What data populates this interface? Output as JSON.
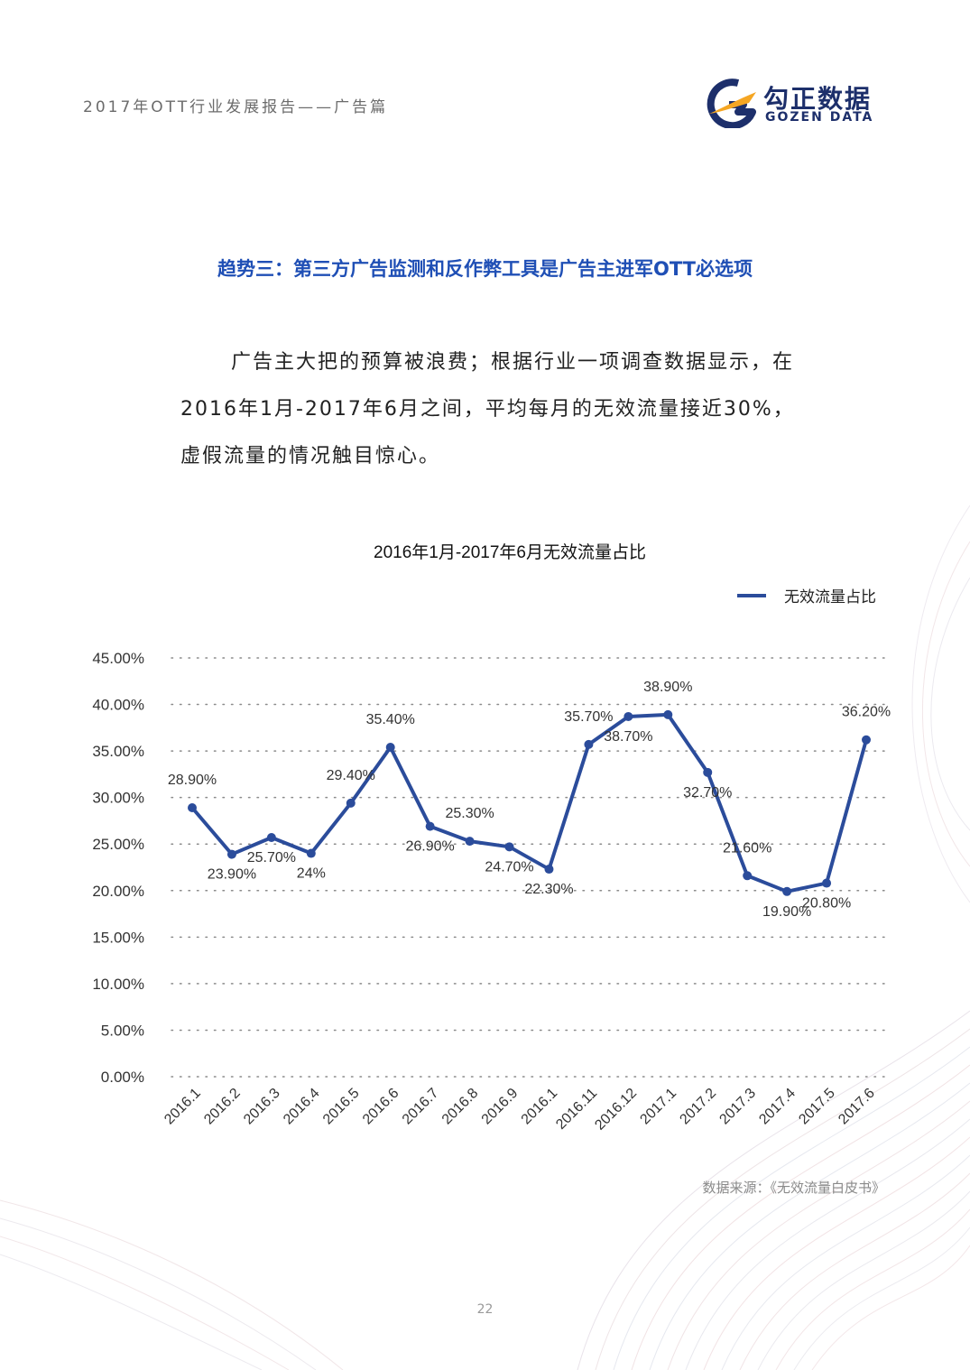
{
  "header": {
    "title": "2017年OTT行业发展报告——广告篇",
    "logo_cn": "勾正数据",
    "logo_en": "GOZEN DATA"
  },
  "section": {
    "heading": "趋势三：第三方广告监测和反作弊工具是广告主进军OTT必选项",
    "paragraph": "广告主大把的预算被浪费；根据行业一项调查数据显示，在2016年1月-2017年6月之间，平均每月的无效流量接近30%，虚假流量的情况触目惊心。"
  },
  "colors": {
    "accent": "#2b4c9b",
    "heading": "#1f4fb5",
    "brand_blue": "#1d2f6b",
    "brand_orange": "#f5a623"
  },
  "chart_data": {
    "type": "line",
    "title": "2016年1月-2017年6月无效流量占比",
    "legend_position": "top-right",
    "grid": true,
    "ylim": [
      0,
      45
    ],
    "yticks": [
      "0.00%",
      "5.00%",
      "10.00%",
      "15.00%",
      "20.00%",
      "25.00%",
      "30.00%",
      "35.00%",
      "40.00%",
      "45.00%"
    ],
    "categories": [
      "2016.1",
      "2016.2",
      "2016.3",
      "2016.4",
      "2016.5",
      "2016.6",
      "2016.7",
      "2016.8",
      "2016.9",
      "2016.1",
      "2016.11",
      "2016.12",
      "2017.1",
      "2017.2",
      "2017.3",
      "2017.4",
      "2017.5",
      "2017.6"
    ],
    "series": [
      {
        "name": "无效流量占比",
        "values": [
          28.9,
          23.9,
          25.7,
          24,
          29.4,
          35.4,
          26.9,
          25.3,
          24.7,
          22.3,
          35.7,
          38.7,
          38.9,
          32.7,
          21.6,
          19.9,
          20.8,
          36.2
        ],
        "labels": [
          "28.90%",
          "23.90%",
          "25.70%",
          "24%",
          "29.40%",
          "35.40%",
          "26.90%",
          "25.30%",
          "24.70%",
          "22.30%",
          "35.70%",
          "38.70%",
          "38.90%",
          "32.70%",
          "21.60%",
          "19.90%",
          "20.80%",
          "36.20%"
        ]
      }
    ]
  },
  "source": "数据来源：《无效流量白皮书》",
  "page_number": "22"
}
